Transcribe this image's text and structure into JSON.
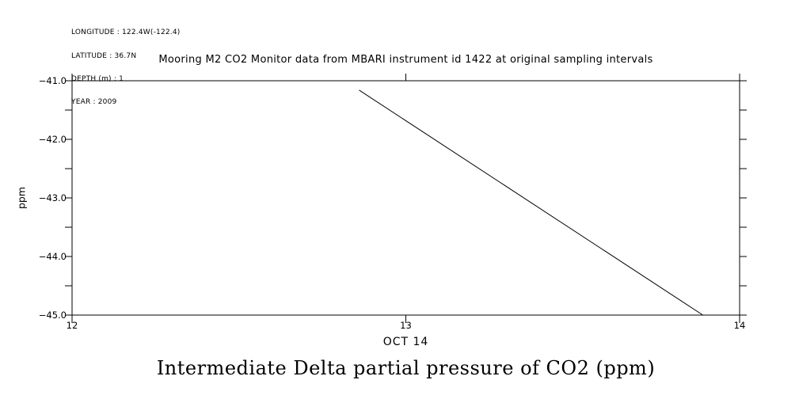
{
  "colors": {
    "background": "#ffffff",
    "ink": "#000000"
  },
  "metadata_block": {
    "lines": [
      "LONGITUDE : 122.4W(-122.4)",
      "LATITUDE : 36.7N",
      "DEPTH (m) : 1",
      "YEAR : 2009"
    ]
  },
  "header": {
    "title": "Mooring M2 CO2 Monitor data from MBARI instrument id 1422 at original sampling intervals"
  },
  "footer": {
    "caption": "Intermediate Delta partial pressure of CO2 (ppm)"
  },
  "chart_data": {
    "type": "line",
    "title": "Mooring M2 CO2 Monitor data from MBARI instrument id 1422 at original sampling intervals",
    "xlabel": "OCT 14",
    "ylabel": "ppm",
    "xlim": [
      12,
      14
    ],
    "ylim": [
      -45.0,
      -41.0
    ],
    "grid": false,
    "legend_position": "none",
    "x_ticks": {
      "values": [
        12,
        13,
        14
      ],
      "labels": [
        "12",
        "13",
        "14"
      ]
    },
    "y_ticks": {
      "values": [
        -41.0,
        -42.0,
        -43.0,
        -44.0,
        -45.0
      ],
      "labels": [
        "−41.0",
        "−42.0",
        "−43.0",
        "−44.0",
        "−45.0"
      ],
      "minor_step": 0.5
    },
    "series": [
      {
        "name": "Intermediate Delta partial pressure of CO2 (ppm)",
        "color": "#000000",
        "x": [
          12.86,
          13.89
        ],
        "y": [
          -41.16,
          -45.0
        ]
      }
    ]
  }
}
